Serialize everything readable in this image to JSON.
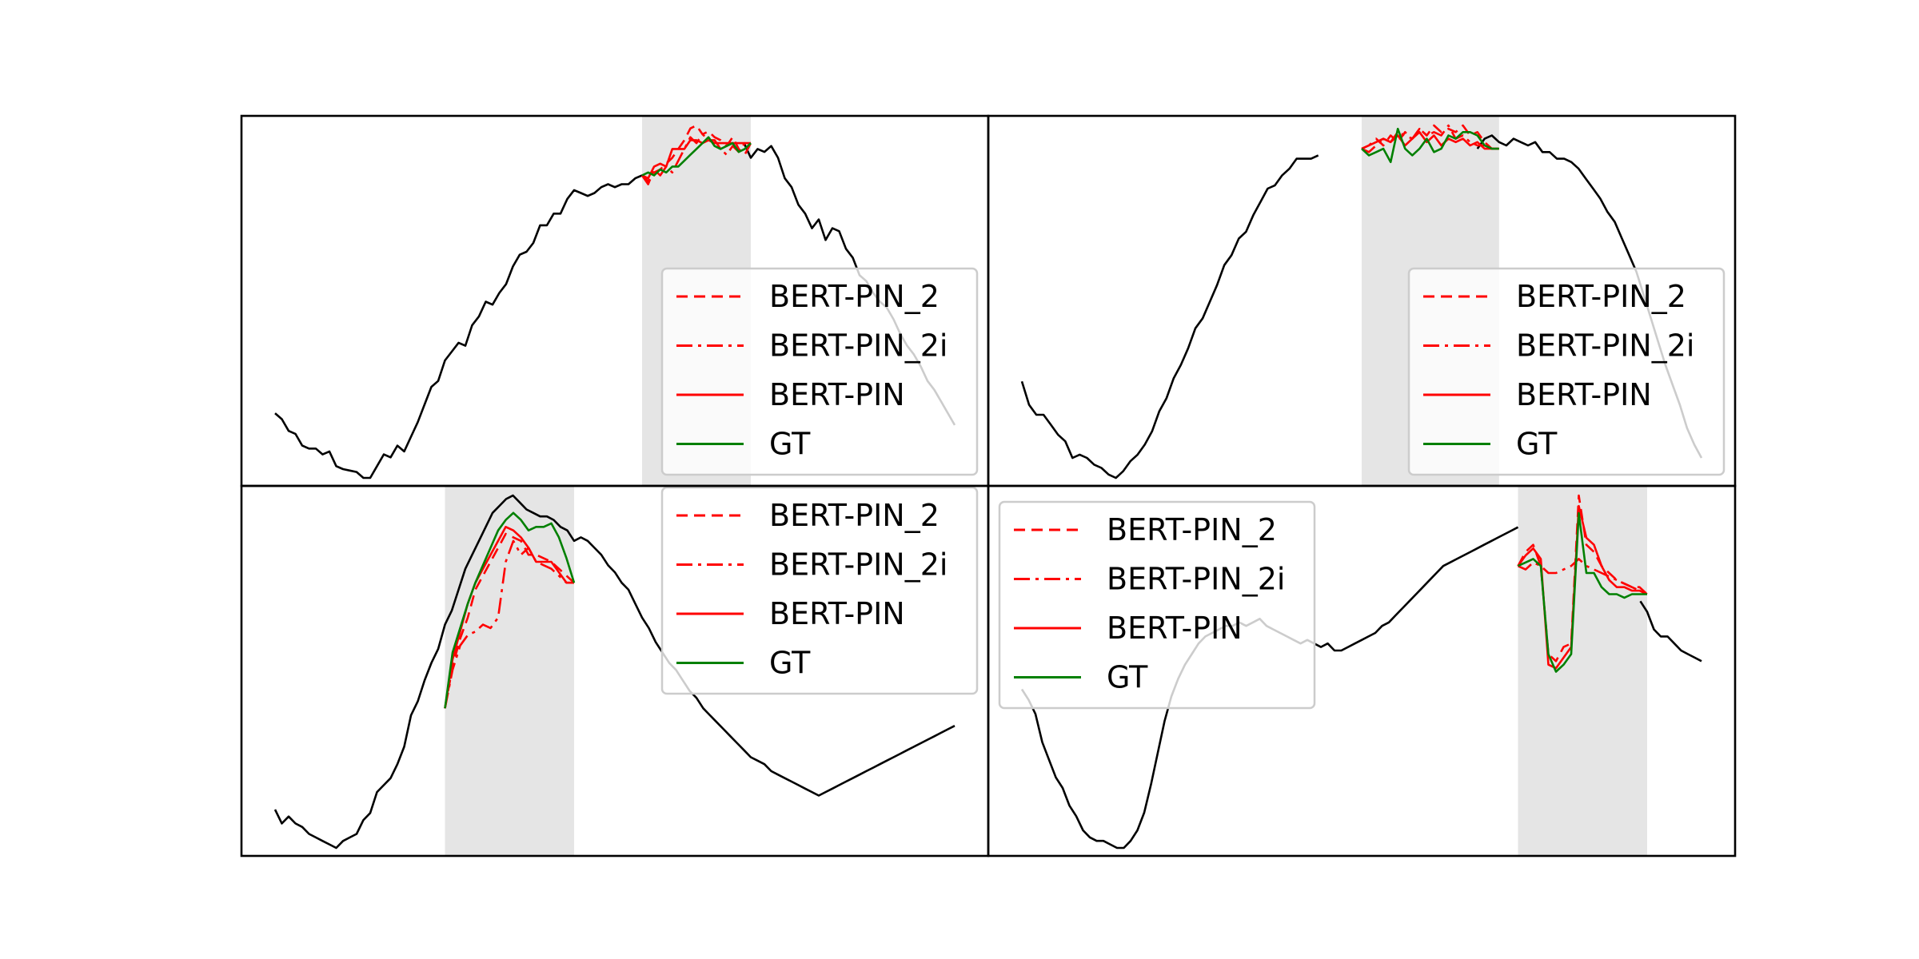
{
  "legend_entries": [
    "BERT-PIN_2",
    "BERT-PIN_2i",
    "BERT-PIN",
    "GT"
  ],
  "colors": {
    "context": "#000000",
    "prediction": "#ff0000",
    "gt": "#008000",
    "masked_region": "#e5e5e5",
    "frame": "#000000"
  },
  "chart_data": [
    {
      "type": "line",
      "panel": "top-left",
      "x_range": [
        0,
        100
      ],
      "y_range": [
        0,
        1
      ],
      "axes_visible": false,
      "legend_placement": "lower-right",
      "masked_region": [
        55,
        69
      ],
      "context": [
        0.22,
        0.2,
        0.16,
        0.15,
        0.11,
        0.1,
        0.1,
        0.08,
        0.09,
        0.04,
        0.03,
        0.025,
        0.02,
        0.0,
        0.0,
        0.04,
        0.08,
        0.07,
        0.11,
        0.09,
        0.14,
        0.19,
        0.25,
        0.31,
        0.33,
        0.4,
        0.43,
        0.46,
        0.45,
        0.52,
        0.55,
        0.6,
        0.59,
        0.63,
        0.66,
        0.72,
        0.76,
        0.77,
        0.8,
        0.86,
        0.86,
        0.9,
        0.9,
        0.95,
        0.98,
        0.97,
        0.96,
        0.97,
        0.99,
        1.0,
        0.99,
        1.0,
        1.0,
        1.02,
        1.03,
        null,
        null,
        null,
        null,
        null,
        null,
        null,
        null,
        null,
        null,
        null,
        null,
        null,
        null,
        1.14,
        1.09,
        1.12,
        1.11,
        1.13,
        1.09,
        1.02,
        0.99,
        0.93,
        0.9,
        0.85,
        0.88,
        0.81,
        0.85,
        0.84,
        0.78,
        0.75,
        0.69,
        0.67,
        0.63,
        0.6,
        0.58,
        0.54,
        0.49,
        0.45,
        0.42,
        0.38,
        0.33,
        0.3,
        0.26,
        0.22,
        0.18
      ],
      "gt": [
        1.03,
        1.04,
        1.03,
        1.05,
        1.04,
        1.06,
        1.06,
        1.08,
        1.1,
        1.12,
        1.14,
        1.16,
        1.13,
        1.12,
        1.13,
        1.14,
        1.11,
        1.12,
        1.14
      ],
      "predictions": [
        {
          "name": "BERT-PIN_2",
          "style": "dashed",
          "values": [
            1.03,
            1.01,
            1.04,
            1.05,
            1.07,
            1.09,
            1.12,
            1.15,
            1.19,
            1.2,
            1.17,
            1.18,
            1.16,
            1.15,
            1.13,
            1.16,
            1.12,
            1.1,
            1.14
          ]
        },
        {
          "name": "BERT-PIN_2i",
          "style": "dashdot",
          "values": [
            1.03,
            1.0,
            1.05,
            1.03,
            1.06,
            1.04,
            1.08,
            1.12,
            1.16,
            1.14,
            1.17,
            1.15,
            1.15,
            1.12,
            1.1,
            1.13,
            1.11,
            1.14,
            1.14
          ]
        },
        {
          "name": "BERT-PIN",
          "style": "solid",
          "values": [
            1.03,
            1.02,
            1.06,
            1.07,
            1.06,
            1.12,
            1.12,
            1.12,
            1.15,
            1.15,
            1.14,
            1.15,
            1.14,
            1.14,
            1.14,
            1.14,
            1.14,
            1.14,
            1.14
          ]
        }
      ]
    },
    {
      "type": "line",
      "panel": "top-right",
      "x_range": [
        0,
        100
      ],
      "y_range": [
        0,
        1
      ],
      "axes_visible": false,
      "legend_placement": "lower-right",
      "masked_region": [
        48,
        65
      ],
      "context": [
        0.29,
        0.22,
        0.19,
        0.19,
        0.16,
        0.13,
        0.11,
        0.06,
        0.07,
        0.06,
        0.04,
        0.03,
        0.01,
        0.0,
        0.02,
        0.05,
        0.07,
        0.1,
        0.14,
        0.2,
        0.24,
        0.3,
        0.34,
        0.39,
        0.45,
        0.48,
        0.53,
        0.58,
        0.64,
        0.67,
        0.72,
        0.74,
        0.79,
        0.83,
        0.87,
        0.88,
        0.91,
        0.93,
        0.96,
        0.96,
        0.96,
        0.97,
        null,
        null,
        null,
        null,
        null,
        null,
        null,
        null,
        null,
        null,
        null,
        null,
        null,
        null,
        null,
        null,
        null,
        null,
        null,
        null,
        null,
        0.99,
        1.02,
        1.03,
        1.01,
        1.0,
        1.02,
        1.01,
        1.0,
        1.01,
        0.98,
        0.98,
        0.96,
        0.96,
        0.95,
        0.93,
        0.9,
        0.87,
        0.84,
        0.8,
        0.77,
        0.72,
        0.67,
        0.62,
        0.55,
        0.48,
        0.41,
        0.34,
        0.28,
        0.22,
        0.15,
        0.1,
        0.06
      ],
      "gt": [
        0.99,
        0.97,
        0.98,
        0.99,
        0.95,
        1.05,
        0.99,
        0.97,
        0.99,
        1.02,
        0.98,
        0.99,
        1.03,
        1.02,
        1.04,
        1.04,
        1.03,
        1.0,
        0.99,
        0.99
      ],
      "predictions": [
        {
          "name": "BERT-PIN_2",
          "style": "dashed",
          "values": [
            0.99,
            1.0,
            1.02,
            1.0,
            1.03,
            1.01,
            1.04,
            1.02,
            1.05,
            1.03,
            1.06,
            1.04,
            1.05,
            1.04,
            1.06,
            1.03,
            1.04,
            1.01,
            0.99,
            0.99
          ]
        },
        {
          "name": "BERT-PIN_2i",
          "style": "dashdot",
          "values": [
            0.99,
            0.98,
            1.0,
            1.02,
            1.01,
            1.04,
            1.03,
            1.02,
            1.05,
            1.03,
            1.04,
            1.03,
            1.06,
            1.02,
            1.03,
            1.01,
            1.0,
            1.0,
            0.99,
            0.99
          ]
        },
        {
          "name": "BERT-PIN",
          "style": "solid",
          "values": [
            0.99,
            1.0,
            1.01,
            1.02,
            1.01,
            1.03,
            1.0,
            1.02,
            1.04,
            1.01,
            1.03,
            1.0,
            1.02,
            1.01,
            1.02,
            1.0,
            1.01,
            0.99,
            0.99,
            0.99
          ]
        }
      ]
    },
    {
      "type": "line",
      "panel": "bottom-left",
      "x_range": [
        0,
        100
      ],
      "y_range": [
        0,
        1
      ],
      "axes_visible": false,
      "legend_placement": "upper-right",
      "masked_region": [
        26,
        43
      ],
      "context": [
        0.15,
        0.11,
        0.13,
        0.11,
        0.1,
        0.08,
        0.07,
        0.06,
        0.05,
        0.04,
        0.06,
        0.07,
        0.08,
        0.12,
        0.14,
        0.2,
        0.22,
        0.24,
        0.28,
        0.33,
        0.42,
        0.46,
        0.52,
        0.57,
        0.61,
        0.68,
        0.72,
        0.78,
        0.84,
        0.88,
        0.92,
        0.96,
        1.0,
        1.02,
        1.04,
        1.05,
        1.03,
        1.01,
        1.0,
        0.99,
        0.99,
        0.98,
        0.96,
        0.95,
        0.92,
        0.93,
        0.92,
        0.9,
        0.88,
        0.85,
        0.83,
        0.8,
        0.78,
        0.74,
        0.7,
        0.67,
        0.63,
        0.6,
        0.57,
        0.55,
        0.52,
        0.49,
        0.47,
        0.44,
        0.42,
        0.4,
        0.38,
        0.36,
        0.34,
        0.32,
        0.3,
        0.29,
        0.28,
        0.26,
        0.25,
        0.24,
        0.23,
        0.22,
        0.21,
        0.2,
        0.19,
        0.2,
        0.21,
        0.22,
        0.23,
        0.24,
        0.25,
        0.26,
        0.27,
        0.28,
        0.29,
        0.3,
        0.31,
        0.32,
        0.33,
        0.34,
        0.35,
        0.36,
        0.37,
        0.38,
        0.39
      ],
      "gt": [
        0.44,
        0.6,
        0.67,
        0.74,
        0.8,
        0.85,
        0.9,
        0.95,
        0.98,
        1.0,
        0.98,
        0.95,
        0.96,
        0.96,
        0.97,
        0.93,
        0.87,
        0.8
      ],
      "predictions": [
        {
          "name": "BERT-PIN_2",
          "style": "dashed",
          "values": [
            0.44,
            0.56,
            0.64,
            0.7,
            0.78,
            0.82,
            0.86,
            0.9,
            0.94,
            0.93,
            0.92,
            0.88,
            0.88,
            0.87,
            0.86,
            0.84,
            0.82,
            0.8
          ]
        },
        {
          "name": "BERT-PIN_2i",
          "style": "dashdot",
          "values": [
            0.44,
            0.55,
            0.62,
            0.65,
            0.66,
            0.68,
            0.67,
            0.7,
            0.86,
            0.92,
            0.88,
            0.9,
            0.86,
            0.85,
            0.84,
            0.82,
            0.8,
            0.8
          ]
        },
        {
          "name": "BERT-PIN",
          "style": "solid",
          "values": [
            0.44,
            0.58,
            0.66,
            0.74,
            0.8,
            0.84,
            0.88,
            0.92,
            0.96,
            0.95,
            0.93,
            0.9,
            0.86,
            0.86,
            0.86,
            0.83,
            0.8,
            0.8
          ]
        }
      ]
    },
    {
      "type": "line",
      "panel": "bottom-right",
      "x_range": [
        0,
        100
      ],
      "y_range": [
        0,
        1
      ],
      "axes_visible": false,
      "legend_placement": "upper-left",
      "masked_region": [
        74,
        91
      ],
      "context": [
        0.45,
        0.42,
        0.38,
        0.3,
        0.25,
        0.2,
        0.17,
        0.12,
        0.09,
        0.05,
        0.03,
        0.02,
        0.02,
        0.01,
        0.0,
        0.0,
        0.02,
        0.05,
        0.1,
        0.18,
        0.27,
        0.36,
        0.43,
        0.48,
        0.52,
        0.55,
        0.58,
        0.6,
        0.61,
        0.62,
        0.63,
        0.63,
        0.64,
        0.63,
        0.64,
        0.65,
        0.63,
        0.62,
        0.61,
        0.6,
        0.59,
        0.58,
        0.59,
        0.58,
        0.57,
        0.58,
        0.56,
        0.56,
        0.57,
        0.58,
        0.59,
        0.6,
        0.61,
        0.63,
        0.64,
        0.66,
        0.68,
        0.7,
        0.72,
        0.74,
        0.76,
        0.78,
        0.8,
        0.81,
        0.82,
        0.83,
        0.84,
        0.85,
        0.86,
        0.87,
        0.88,
        0.89,
        0.9,
        0.91,
        null,
        null,
        null,
        null,
        null,
        null,
        null,
        null,
        null,
        null,
        null,
        null,
        null,
        null,
        null,
        null,
        null,
        0.7,
        0.67,
        0.62,
        0.6,
        0.6,
        0.58,
        0.56,
        0.55,
        0.54,
        0.53
      ],
      "gt": [
        0.8,
        0.81,
        0.82,
        0.8,
        0.55,
        0.5,
        0.52,
        0.55,
        0.95,
        0.78,
        0.78,
        0.74,
        0.72,
        0.72,
        0.71,
        0.72,
        0.72,
        0.72
      ],
      "predictions": [
        {
          "name": "BERT-PIN_2",
          "style": "dashed",
          "values": [
            0.8,
            0.84,
            0.86,
            0.8,
            0.55,
            0.53,
            0.57,
            0.58,
            1.0,
            0.86,
            0.84,
            0.8,
            0.78,
            0.76,
            0.75,
            0.74,
            0.74,
            0.72
          ]
        },
        {
          "name": "BERT-PIN_2i",
          "style": "dashdot",
          "values": [
            0.8,
            0.79,
            0.81,
            0.8,
            0.78,
            0.78,
            0.79,
            0.8,
            0.82,
            0.8,
            0.79,
            0.78,
            0.77,
            0.76,
            0.75,
            0.74,
            0.73,
            0.72
          ]
        },
        {
          "name": "BERT-PIN",
          "style": "solid",
          "values": [
            0.8,
            0.83,
            0.85,
            0.82,
            0.52,
            0.51,
            0.54,
            0.57,
            0.97,
            0.88,
            0.86,
            0.8,
            0.76,
            0.74,
            0.74,
            0.73,
            0.73,
            0.72
          ]
        }
      ]
    }
  ]
}
